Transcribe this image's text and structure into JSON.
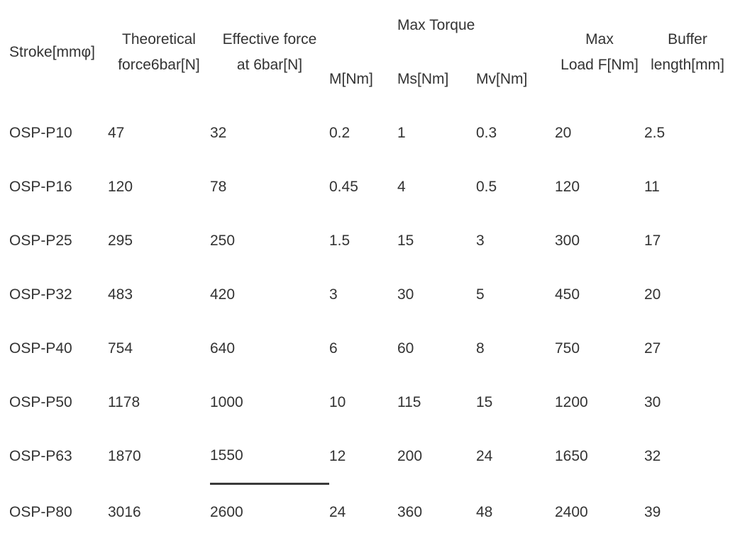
{
  "header": {
    "stroke": "Stroke[mmφ]",
    "theoretical_force": [
      "Theoretical",
      "force6bar[N]"
    ],
    "effective_force": [
      "Effective force",
      "at 6bar[N]"
    ],
    "max_torque": "Max Torque",
    "torque_m": "M[Nm]",
    "torque_ms": "Ms[Nm]",
    "torque_mv": "Mv[Nm]",
    "max_load": [
      "Max",
      "Load F[Nm]"
    ],
    "buffer_length": [
      "Buffer",
      "length[mm]"
    ]
  },
  "rows": [
    [
      "OSP-P10",
      "47",
      "32",
      "0.2",
      "1",
      "0.3",
      "20",
      "2.5"
    ],
    [
      "OSP-P16",
      "120",
      "78",
      "0.45",
      "4",
      "0.5",
      "120",
      "11"
    ],
    [
      "OSP-P25",
      "295",
      "250",
      "1.5",
      "15",
      "3",
      "300",
      "17"
    ],
    [
      "OSP-P32",
      "483",
      "420",
      "3",
      "30",
      "5",
      "450",
      "20"
    ],
    [
      "OSP-P40",
      "754",
      "640",
      "6",
      "60",
      "8",
      "750",
      "27"
    ],
    [
      "OSP-P50",
      "1178",
      "1000",
      "10",
      "115",
      "15",
      "1200",
      "30"
    ],
    [
      "OSP-P63",
      "1870",
      "1550",
      "12",
      "200",
      "24",
      "1650",
      "32"
    ],
    [
      "OSP-P80",
      "3016",
      "2600",
      "24",
      "360",
      "48",
      "2400",
      "39"
    ]
  ]
}
